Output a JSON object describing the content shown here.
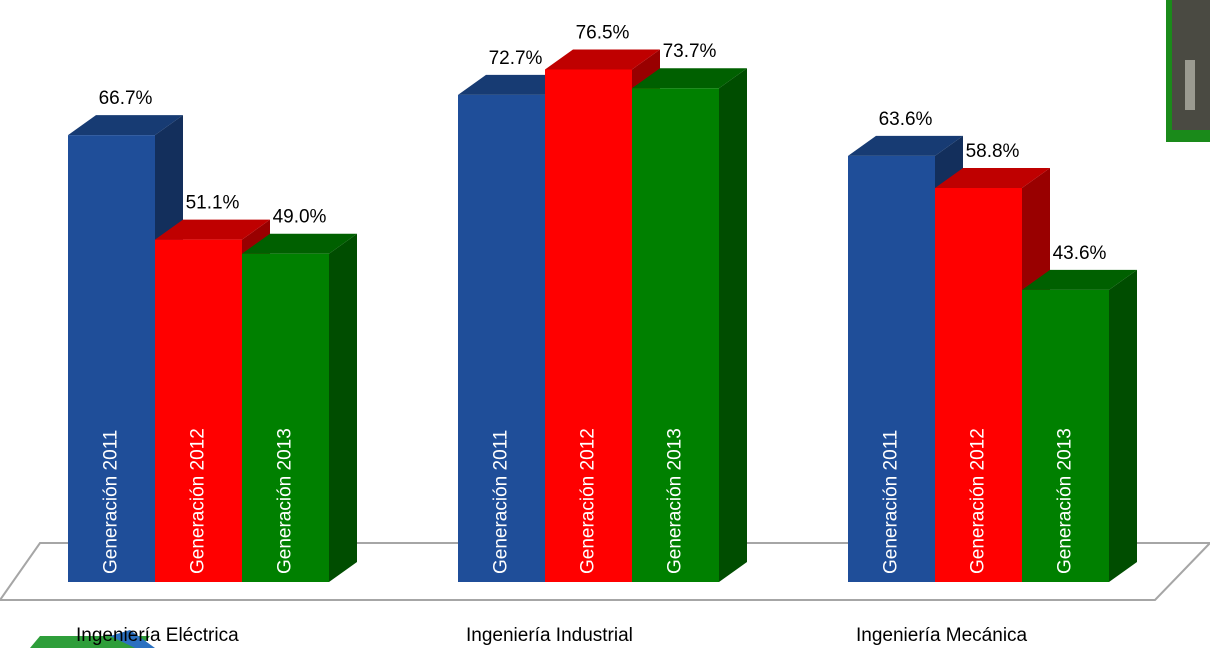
{
  "chart_data": {
    "type": "bar3d",
    "categories": [
      "Ingeniería Eléctrica",
      "Ingeniería Industrial",
      "Ingeniería Mecánica"
    ],
    "ylim": [
      0,
      80
    ],
    "series": [
      {
        "name": "Generación 2011",
        "color": "#1f4e99",
        "values": [
          66.7,
          72.7,
          63.6
        ],
        "value_labels": [
          "66.7%",
          "72.7%",
          "63.6%"
        ]
      },
      {
        "name": "Generación 2012",
        "color": "#ff0000",
        "values": [
          51.1,
          76.5,
          58.8
        ],
        "value_labels": [
          "51.1%",
          "76.5%",
          "58.8%"
        ]
      },
      {
        "name": "Generación 2013",
        "color": "#008000",
        "values": [
          49.0,
          73.7,
          43.6
        ],
        "value_labels": [
          "49.0%",
          "73.7%",
          "43.6%"
        ]
      }
    ]
  }
}
